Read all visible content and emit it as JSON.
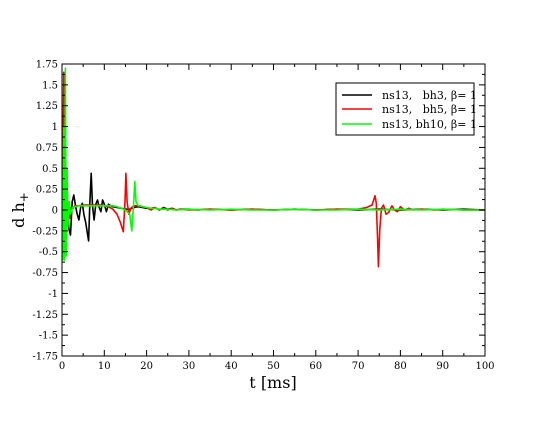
{
  "chart_data": {
    "type": "line",
    "xlabel": "t [ms]",
    "ylabel": "d h",
    "ylabel_subscript": "+",
    "xlim": [
      0,
      100
    ],
    "ylim": [
      -1.75,
      1.75
    ],
    "xticks": [
      "0",
      "10",
      "20",
      "30",
      "40",
      "50",
      "60",
      "70",
      "80",
      "90",
      "100"
    ],
    "yticks": [
      "1.75",
      "1.5",
      "1.25",
      "1",
      "0.75",
      "0.5",
      "0.25",
      "0",
      "-0.25",
      "-0.5",
      "-0.75",
      "-1",
      "-1.25",
      "-1.5",
      "-1.75"
    ],
    "grid": false,
    "legend_position": "top-right",
    "series": [
      {
        "name": "ns13,   bh3, β= 1",
        "color": "#000000",
        "points": [
          [
            0,
            0
          ],
          [
            0.3,
            -0.25
          ],
          [
            0.6,
            -0.12
          ],
          [
            1.0,
            -0.2
          ],
          [
            1.3,
            0.05
          ],
          [
            1.6,
            -0.22
          ],
          [
            2.0,
            -0.3
          ],
          [
            2.4,
            0.1
          ],
          [
            2.8,
            0.18
          ],
          [
            3.2,
            0.05
          ],
          [
            3.6,
            -0.05
          ],
          [
            4.0,
            -0.12
          ],
          [
            4.4,
            0.03
          ],
          [
            4.8,
            0.08
          ],
          [
            5.2,
            -0.06
          ],
          [
            5.6,
            -0.15
          ],
          [
            6.0,
            -0.28
          ],
          [
            6.3,
            -0.37
          ],
          [
            6.6,
            0.1
          ],
          [
            6.9,
            0.44
          ],
          [
            7.2,
            0.05
          ],
          [
            7.6,
            -0.12
          ],
          [
            8.0,
            0.07
          ],
          [
            8.4,
            0.12
          ],
          [
            8.8,
            0.03
          ],
          [
            9.2,
            -0.02
          ],
          [
            9.6,
            0.12
          ],
          [
            10.0,
            0.07
          ],
          [
            10.5,
            -0.02
          ],
          [
            11.0,
            0.07
          ],
          [
            11.5,
            0.05
          ],
          [
            12,
            0.04
          ],
          [
            13,
            0.03
          ],
          [
            14,
            0.02
          ],
          [
            15,
            0.01
          ],
          [
            16,
            0.01
          ],
          [
            17,
            0.03
          ],
          [
            18,
            0.04
          ],
          [
            19,
            0.03
          ],
          [
            20,
            0.02
          ],
          [
            21,
            0.02
          ],
          [
            22,
            0.03
          ],
          [
            23,
            0.0
          ],
          [
            24,
            0.03
          ],
          [
            25,
            0.01
          ],
          [
            26,
            0.02
          ],
          [
            27,
            0.0
          ],
          [
            28,
            0.01
          ],
          [
            30,
            0.01
          ],
          [
            32,
            0.0
          ],
          [
            35,
            0.01
          ],
          [
            40,
            0.0
          ],
          [
            45,
            0.01
          ],
          [
            50,
            0.0
          ],
          [
            55,
            0.01
          ],
          [
            60,
            0.0
          ],
          [
            65,
            0.01
          ],
          [
            70,
            0.0
          ],
          [
            75,
            0.01
          ],
          [
            80,
            0.0
          ],
          [
            85,
            0.01
          ],
          [
            90,
            0.0
          ],
          [
            95,
            0.01
          ],
          [
            100,
            0.0
          ]
        ]
      },
      {
        "name": "ns13,   bh5, β= 1",
        "color": "#ff0000",
        "points": [
          [
            0,
            0
          ],
          [
            0.2,
            0.3
          ],
          [
            0.4,
            1.65
          ],
          [
            0.6,
            -0.3
          ],
          [
            0.8,
            0.6
          ],
          [
            1.0,
            -0.4
          ],
          [
            1.2,
            0.25
          ],
          [
            1.4,
            -0.15
          ],
          [
            1.6,
            0.05
          ],
          [
            1.9,
            -0.1
          ],
          [
            2.2,
            0.03
          ],
          [
            2.6,
            0.02
          ],
          [
            3.0,
            0.05
          ],
          [
            4,
            0.05
          ],
          [
            5,
            0.06
          ],
          [
            6,
            0.06
          ],
          [
            7,
            0.06
          ],
          [
            8,
            0.06
          ],
          [
            9,
            0.06
          ],
          [
            10,
            0.05
          ],
          [
            11,
            0.04
          ],
          [
            12,
            0.01
          ],
          [
            13,
            -0.05
          ],
          [
            13.8,
            -0.15
          ],
          [
            14.5,
            -0.26
          ],
          [
            14.9,
            0.1
          ],
          [
            15.1,
            0.44
          ],
          [
            15.4,
            0.1
          ],
          [
            15.8,
            -0.05
          ],
          [
            16.3,
            0.02
          ],
          [
            17,
            0.05
          ],
          [
            18,
            0.05
          ],
          [
            19,
            0.04
          ],
          [
            20,
            0.03
          ],
          [
            21,
            0.0
          ],
          [
            22,
            0.03
          ],
          [
            23,
            0.0
          ],
          [
            24,
            0.02
          ],
          [
            25,
            0.0
          ],
          [
            26,
            0.02
          ],
          [
            27,
            0.0
          ],
          [
            28,
            0.01
          ],
          [
            30,
            0.0
          ],
          [
            35,
            0.01
          ],
          [
            40,
            0.0
          ],
          [
            45,
            0.01
          ],
          [
            50,
            0.0
          ],
          [
            55,
            0.01
          ],
          [
            60,
            0.0
          ],
          [
            65,
            0.01
          ],
          [
            70,
            0.01
          ],
          [
            72,
            0.03
          ],
          [
            73.3,
            0.06
          ],
          [
            74,
            0.17
          ],
          [
            74.3,
            0.08
          ],
          [
            74.6,
            -0.35
          ],
          [
            74.8,
            -0.68
          ],
          [
            75.1,
            -0.25
          ],
          [
            75.5,
            0.02
          ],
          [
            76,
            0.06
          ],
          [
            76.6,
            -0.05
          ],
          [
            77.2,
            -0.03
          ],
          [
            78,
            0.05
          ],
          [
            78.6,
            0.0
          ],
          [
            79.3,
            -0.02
          ],
          [
            80,
            0.04
          ],
          [
            81,
            0.0
          ],
          [
            82,
            0.02
          ],
          [
            83,
            0.0
          ],
          [
            85,
            0.01
          ],
          [
            88,
            0.0
          ],
          [
            90,
            0.01
          ],
          [
            95,
            0.0
          ],
          [
            100,
            0.0
          ]
        ]
      },
      {
        "name": "ns13, bh10, β= 1",
        "color": "#00ff00",
        "points": [
          [
            0,
            0
          ],
          [
            0.2,
            -0.6
          ],
          [
            0.4,
            1.0
          ],
          [
            0.6,
            -0.6
          ],
          [
            0.8,
            1.7
          ],
          [
            1.0,
            -0.55
          ],
          [
            1.2,
            0.5
          ],
          [
            1.4,
            -0.2
          ],
          [
            1.7,
            0.1
          ],
          [
            2.0,
            -0.05
          ],
          [
            2.5,
            0.03
          ],
          [
            3,
            0.04
          ],
          [
            4,
            0.05
          ],
          [
            5,
            0.05
          ],
          [
            6,
            0.05
          ],
          [
            7,
            0.05
          ],
          [
            8,
            0.05
          ],
          [
            9,
            0.05
          ],
          [
            10,
            0.05
          ],
          [
            11,
            0.05
          ],
          [
            12,
            0.05
          ],
          [
            13,
            0.04
          ],
          [
            14,
            0.02
          ],
          [
            15,
            0.0
          ],
          [
            16,
            -0.05
          ],
          [
            16.5,
            -0.25
          ],
          [
            16.9,
            0.05
          ],
          [
            17.2,
            0.34
          ],
          [
            17.5,
            0.1
          ],
          [
            18,
            0.05
          ],
          [
            18.5,
            0.05
          ],
          [
            19,
            0.04
          ],
          [
            20,
            0.03
          ],
          [
            21,
            0.02
          ],
          [
            22,
            0.02
          ],
          [
            23,
            0.01
          ],
          [
            25,
            0.01
          ],
          [
            27,
            0.0
          ],
          [
            30,
            0.01
          ],
          [
            35,
            0.0
          ],
          [
            40,
            0.01
          ],
          [
            45,
            0.0
          ],
          [
            50,
            0.0
          ],
          [
            55,
            0.01
          ],
          [
            60,
            0.0
          ],
          [
            65,
            0.0
          ],
          [
            70,
            0.01
          ],
          [
            75,
            0.0
          ],
          [
            80,
            0.01
          ],
          [
            85,
            0.0
          ],
          [
            90,
            0.01
          ],
          [
            95,
            0.0
          ],
          [
            100,
            0.0
          ]
        ]
      }
    ]
  }
}
